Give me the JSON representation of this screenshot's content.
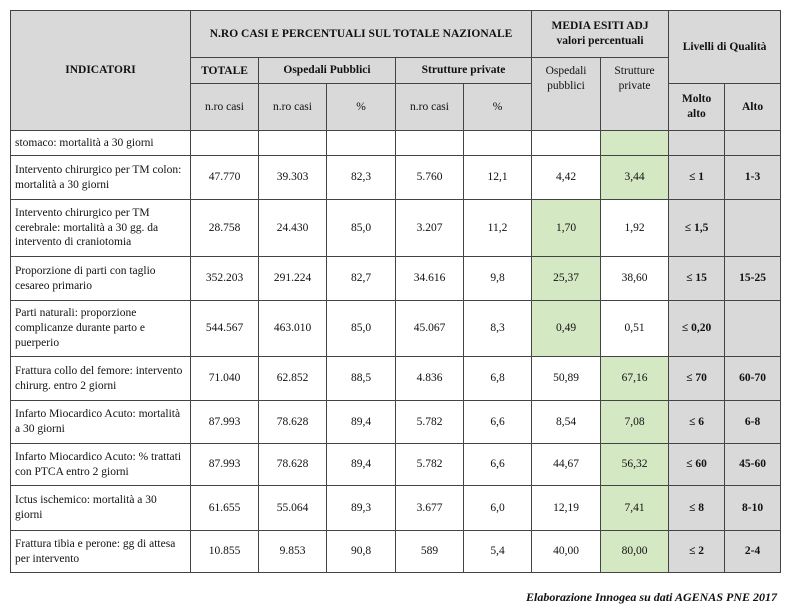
{
  "header": {
    "indicatori": "INDICATORI",
    "casi_title": "N.RO CASI E PERCENTUALI SUL TOTALE NAZIONALE",
    "totale": "TOTALE",
    "ospedali": "Ospedali Pubblici",
    "strutture": "Strutture private",
    "media_title": "MEDIA ESITI ADJ",
    "media_subtitle": "valori percentuali",
    "media_ospedali": "Ospedali pubblici",
    "media_strutture": "Strutture private",
    "livelli": "Livelli di Qualità",
    "molto_alto": "Molto alto",
    "alto": "Alto",
    "units": [
      "n.ro casi",
      "n.ro casi",
      "%",
      "n.ro casi",
      "%"
    ]
  },
  "table": {
    "rows": [
      [
        "stomaco: mortalità a 30 giorni",
        null,
        null,
        null,
        null,
        null,
        null,
        null,
        null,
        null
      ],
      [
        "Intervento chirurgico per TM colon: mortalità a 30 giorni",
        "47.770",
        "39.303",
        "82,3",
        "5.760",
        "12,1",
        "4,42",
        "3,44",
        "≤ 1",
        "1-3"
      ],
      [
        "Intervento chirurgico per TM cerebrale: mortalità a 30 gg. da intervento di craniotomia",
        "28.758",
        "24.430",
        "85,0",
        "3.207",
        "11,2",
        "1,70",
        "1,92",
        "≤ 1,5",
        null
      ],
      [
        "Proporzione di parti con taglio cesareo primario",
        "352.203",
        "291.224",
        "82,7",
        "34.616",
        "9,8",
        "25,37",
        "38,60",
        "≤ 15",
        "15-25"
      ],
      [
        "Parti naturali: proporzione complicanze durante parto e puerperio",
        "544.567",
        "463.010",
        "85,0",
        "45.067",
        "8,3",
        "0,49",
        "0,51",
        "≤ 0,20",
        null
      ],
      [
        "Frattura collo del femore: intervento chirurg. entro 2 giorni",
        "71.040",
        "62.852",
        "88,5",
        "4.836",
        "6,8",
        "50,89",
        "67,16",
        "≤ 70",
        "60-70"
      ],
      [
        "Infarto Miocardico Acuto: mortalità a 30 giorni",
        "87.993",
        "78.628",
        "89,4",
        "5.782",
        "6,6",
        "8,54",
        "7,08",
        "≤ 6",
        "6-8"
      ],
      [
        "Infarto Miocardico Acuto: % trattati con PTCA entro 2 giorni",
        "87.993",
        "78.628",
        "89,4",
        "5.782",
        "6,6",
        "44,67",
        "56,32",
        "≤ 60",
        "45-60"
      ],
      [
        "Ictus ischemico: mortalità a 30 giorni",
        "61.655",
        "55.064",
        "89,3",
        "3.677",
        "6,0",
        "12,19",
        "7,41",
        "≤ 8",
        "8-10"
      ],
      [
        "Frattura tibia e perone: gg di attesa per intervento",
        "10.855",
        "9.853",
        "90,8",
        "589",
        "5,4",
        "40,00",
        "80,00",
        "≤ 2",
        "2-4"
      ]
    ]
  },
  "source": "Elaborazione Innogea su dati AGENAS PNE 2017"
}
